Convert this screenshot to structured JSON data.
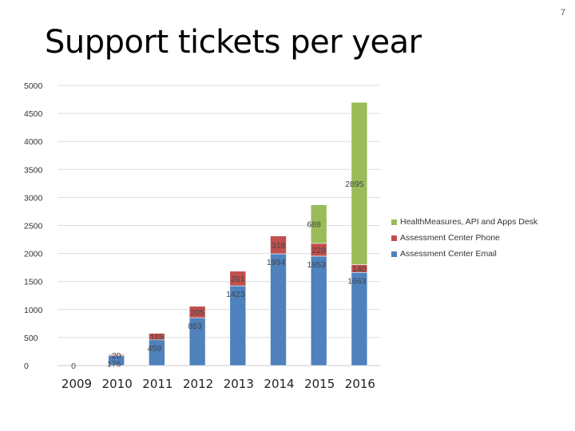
{
  "page_number": "7",
  "title": "Support tickets per year",
  "chart_data": {
    "type": "bar",
    "stacked": true,
    "categories": [
      "2009",
      "2010",
      "2011",
      "2012",
      "2013",
      "2014",
      "2015",
      "2016"
    ],
    "series": [
      {
        "name": "Assessment Center Email",
        "color": "#4F81BD",
        "values": [
          0,
          176,
          459,
          853,
          1423,
          1994,
          1953,
          1663
        ],
        "labels": [
          "0",
          "176",
          "459",
          "853",
          "1423",
          "1994",
          "1953",
          "1663"
        ]
      },
      {
        "name": "Assessment Center Phone",
        "color": "#C0504D",
        "values": [
          null,
          20,
          115,
          205,
          261,
          318,
          228,
          140
        ],
        "labels": [
          "",
          "20",
          "115",
          "205",
          "261",
          "318",
          "228",
          "140"
        ]
      },
      {
        "name": "HealthMeasures, API and Apps Desk",
        "color": "#9BBB59",
        "values": [
          null,
          null,
          null,
          null,
          null,
          null,
          688,
          2895
        ],
        "labels": [
          "",
          "",
          "",
          "",
          "",
          "",
          "688",
          "2895"
        ]
      }
    ],
    "ylim": [
      0,
      5000
    ],
    "yticks": [
      "0",
      "500",
      "1000",
      "1500",
      "2000",
      "2500",
      "3000",
      "3500",
      "4000",
      "4500",
      "5000"
    ],
    "grid": true,
    "legend_position": "right"
  }
}
